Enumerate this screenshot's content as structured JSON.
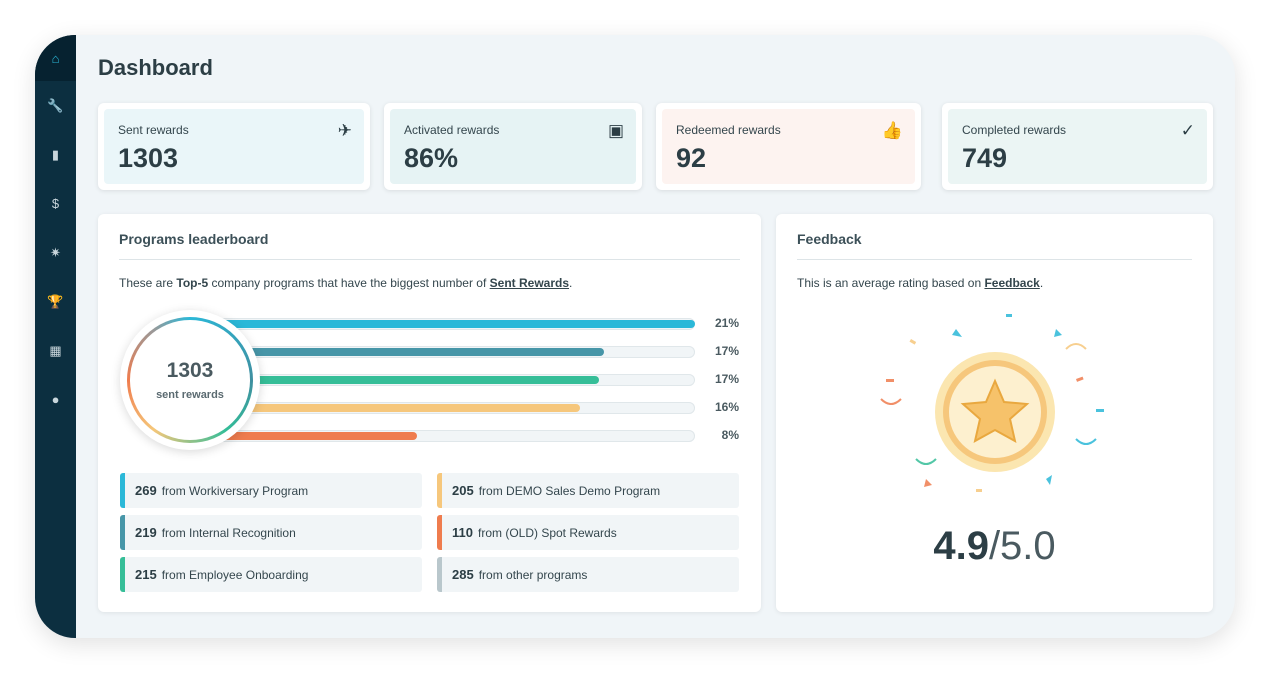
{
  "sidebar": {
    "items": [
      {
        "icon": "home-icon",
        "glyph": "⌂"
      },
      {
        "icon": "wrench-icon",
        "glyph": "🔧"
      },
      {
        "icon": "bar-chart-icon",
        "glyph": "▮"
      },
      {
        "icon": "dollar-icon",
        "glyph": "$"
      },
      {
        "icon": "party-icon",
        "glyph": "✷"
      },
      {
        "icon": "trophy-icon",
        "glyph": "🏆"
      },
      {
        "icon": "grid-icon",
        "glyph": "▦"
      },
      {
        "icon": "user-icon",
        "glyph": "●"
      }
    ]
  },
  "page_title": "Dashboard",
  "stats": [
    {
      "label": "Sent rewards",
      "value": "1303",
      "icon": "paper-plane-icon",
      "glyph": "✈",
      "bg": "#eaf6f9"
    },
    {
      "label": "Activated rewards",
      "value": "86%",
      "icon": "screen-icon",
      "glyph": "▣",
      "bg": "#e6f3f4"
    },
    {
      "label": "Redeemed rewards",
      "value": "92",
      "icon": "thumbs-up-icon",
      "glyph": "👍",
      "bg": "#fdf3f0"
    },
    {
      "label": "Completed rewards",
      "value": "749",
      "icon": "check-circle-icon",
      "glyph": "✓",
      "bg": "#ebf5f4"
    }
  ],
  "leaderboard": {
    "title": "Programs leaderboard",
    "desc_pre": "These are ",
    "desc_bold": "Top-5",
    "desc_mid": " company programs that have the biggest number of ",
    "desc_link": "Sent Rewards",
    "desc_end": ".",
    "total": "1303",
    "total_label": "sent rewards",
    "bars": [
      {
        "pct": "21%",
        "fill": 1.0,
        "color": "#2bb8d8"
      },
      {
        "pct": "17%",
        "fill": 0.81,
        "color": "#4796a8"
      },
      {
        "pct": "17%",
        "fill": 0.8,
        "color": "#36be98"
      },
      {
        "pct": "16%",
        "fill": 0.76,
        "color": "#f6c77c"
      },
      {
        "pct": "8%",
        "fill": 0.42,
        "color": "#ef7c4e"
      }
    ],
    "legend": [
      {
        "count": "269",
        "text": "from Workiversary Program",
        "color": "#2bb8d8"
      },
      {
        "count": "205",
        "text": "from DEMO Sales Demo Program",
        "color": "#f6c77c"
      },
      {
        "count": "219",
        "text": "from Internal Recognition",
        "color": "#4796a8"
      },
      {
        "count": "110",
        "text": "from (OLD) Spot Rewards",
        "color": "#ef7c4e"
      },
      {
        "count": "215",
        "text": "from Employee Onboarding",
        "color": "#36be98"
      },
      {
        "count": "285",
        "text": "from other programs",
        "color": "#b9c7cc"
      }
    ]
  },
  "feedback": {
    "title": "Feedback",
    "desc_pre": "This is an average rating based on ",
    "desc_link": "Feedback",
    "desc_end": ".",
    "rating": "4.9",
    "max": "/5.0"
  }
}
